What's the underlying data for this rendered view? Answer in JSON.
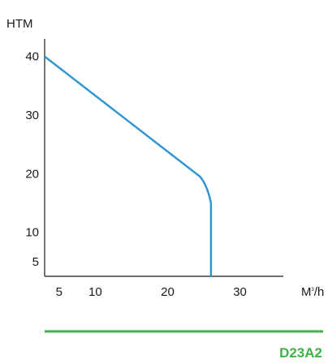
{
  "chart_data": {
    "type": "line",
    "ylabel": "HTM",
    "xlabel": {
      "main": "M",
      "superscript": "3",
      "suffix": "/h"
    },
    "xlim": [
      3,
      36
    ],
    "ylim": [
      2.5,
      43
    ],
    "x_ticks": [
      5,
      10,
      20,
      30
    ],
    "y_ticks": [
      5,
      10,
      20,
      30,
      40
    ],
    "grid": false,
    "series": [
      {
        "x": [
          3,
          24.5,
          25.5,
          26,
          26,
          26
        ],
        "y": [
          40,
          19.5,
          18,
          15,
          10,
          2.5
        ]
      }
    ],
    "line_color": "#2a93d0",
    "axis_color": "#1a1a1a"
  },
  "footer": {
    "model_code": "D23A2",
    "brand_color": "#3db346"
  }
}
